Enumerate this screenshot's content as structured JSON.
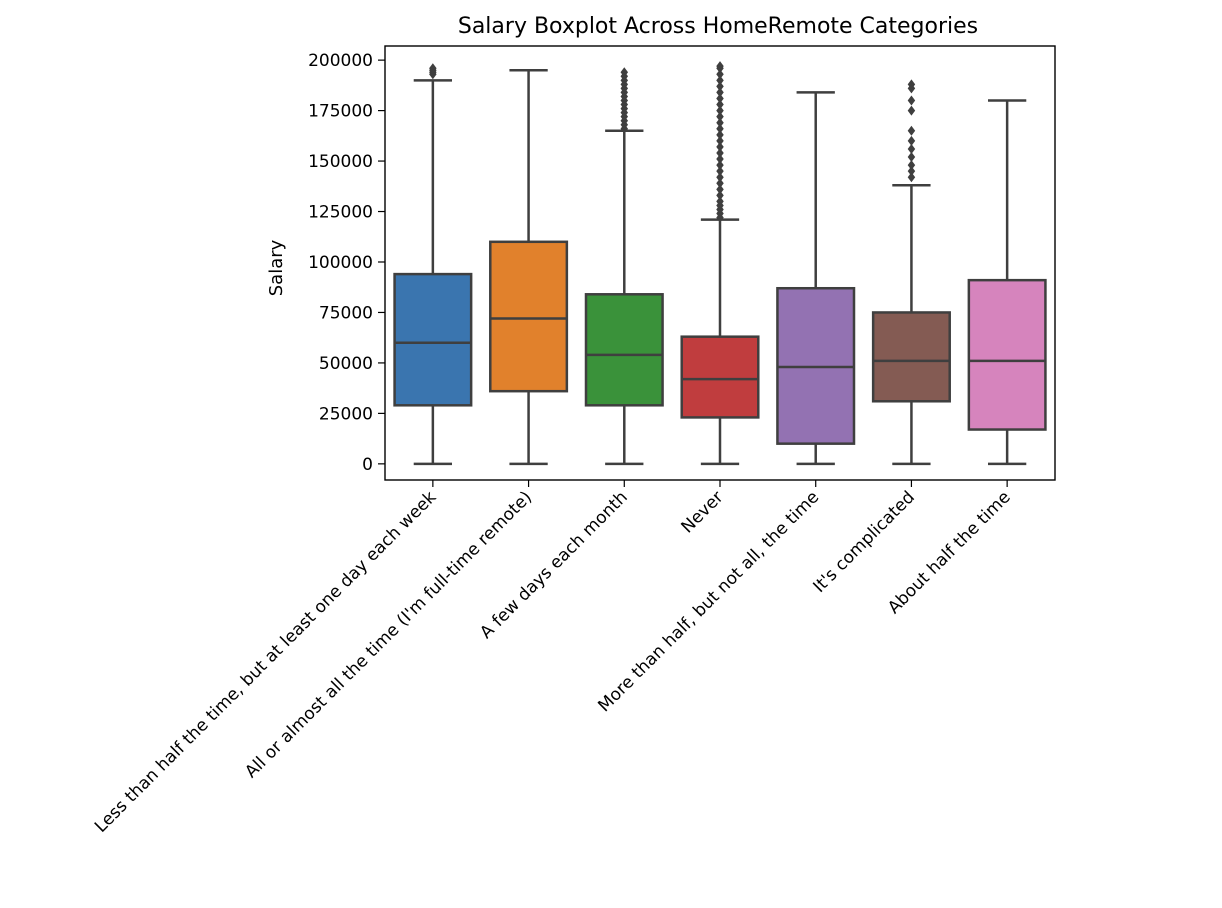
{
  "chart_data": {
    "type": "boxplot",
    "title": "Salary Boxplot Across HomeRemote Categories",
    "xlabel": "",
    "ylabel": "Salary",
    "ylim": [
      -8000,
      207000
    ],
    "yticks": [
      0,
      25000,
      50000,
      75000,
      100000,
      125000,
      150000,
      175000,
      200000
    ],
    "yticklabels": [
      "0",
      "25000",
      "50000",
      "75000",
      "100000",
      "125000",
      "150000",
      "175000",
      "200000"
    ],
    "grid": false,
    "categories": [
      "Less than half the time, but at least one day each week",
      "All or almost all the time (I'm full-time remote)",
      "A few days each month",
      "Never",
      "More than half, but not all, the time",
      "It's complicated",
      "About half the time"
    ],
    "boxes": [
      {
        "whisker_low": 0,
        "q1": 29000,
        "median": 60000,
        "q3": 94000,
        "whisker_high": 190000,
        "outliers": [
          193000,
          194000,
          195000,
          196000
        ],
        "color": "#3A75AF"
      },
      {
        "whisker_low": 0,
        "q1": 36000,
        "median": 72000,
        "q3": 110000,
        "whisker_high": 195000,
        "outliers": [],
        "color": "#E1812C"
      },
      {
        "whisker_low": 0,
        "q1": 29000,
        "median": 54000,
        "q3": 84000,
        "whisker_high": 165000,
        "outliers": [
          166000,
          168000,
          170000,
          172000,
          174000,
          176000,
          178000,
          180000,
          182000,
          184000,
          186000,
          188000,
          190000,
          192000,
          194000
        ],
        "color": "#3A923A"
      },
      {
        "whisker_low": 0,
        "q1": 23000,
        "median": 42000,
        "q3": 63000,
        "whisker_high": 121000,
        "outliers": [
          122000,
          124000,
          126000,
          128000,
          130000,
          133000,
          136000,
          139000,
          142000,
          145000,
          148000,
          151000,
          154000,
          157000,
          160000,
          163000,
          166000,
          169000,
          172000,
          175000,
          178000,
          181000,
          184000,
          187000,
          190000,
          193000,
          196000,
          197000
        ],
        "color": "#C03D3E"
      },
      {
        "whisker_low": 0,
        "q1": 10000,
        "median": 48000,
        "q3": 87000,
        "whisker_high": 184000,
        "outliers": [],
        "color": "#9372B2"
      },
      {
        "whisker_low": 0,
        "q1": 31000,
        "median": 51000,
        "q3": 75000,
        "whisker_high": 138000,
        "outliers": [
          142000,
          145000,
          148000,
          152000,
          156000,
          160000,
          165000,
          175000,
          180000,
          186000,
          188000
        ],
        "color": "#845B53"
      },
      {
        "whisker_low": 0,
        "q1": 17000,
        "median": 51000,
        "q3": 91000,
        "whisker_high": 180000,
        "outliers": [],
        "color": "#D684BD"
      }
    ]
  }
}
